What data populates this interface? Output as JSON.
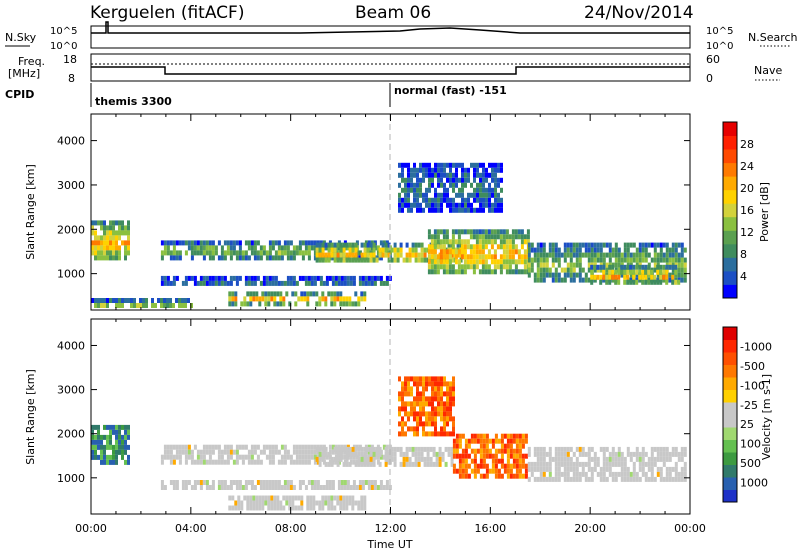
{
  "header": {
    "radar": "Kerguelen (fitACF)",
    "beam": "Beam 06",
    "date": "24/Nov/2014"
  },
  "top_panels": {
    "nsky_label": "N.Sky",
    "nsearch_label": "N.Search",
    "nsky_ticks": [
      "10^5",
      "10^0"
    ],
    "nsearch_ticks": [
      "10^5",
      "10^0"
    ],
    "freq_label_line1": "Freq.",
    "freq_label_line2": "[MHz]",
    "freq_ticks": [
      "18",
      "8"
    ],
    "nave_ticks": [
      "60",
      "0"
    ],
    "nave_label": "Nave",
    "cpid_label": "CPID",
    "cpid_mode_1": "themis 3300",
    "cpid_mode_2": "normal (fast) -151"
  },
  "chart_data": [
    {
      "type": "heatmap",
      "title": "",
      "ylabel": "Slant Range [km]",
      "xlabel": "Time UT",
      "ylim": [
        180,
        4600
      ],
      "yticks": [
        1000,
        2000,
        3000,
        4000
      ],
      "xticks": [
        "00:00",
        "04:00",
        "08:00",
        "12:00",
        "16:00",
        "20:00",
        "00:00"
      ],
      "xlim_hours": [
        0,
        24
      ],
      "colorbar": {
        "label": "Power [dB]",
        "ticks": [
          "4",
          "8",
          "12",
          "16",
          "20",
          "24",
          "28"
        ],
        "range": [
          0,
          30
        ],
        "colors": [
          "#0000ff",
          "#1c4fc4",
          "#2b6e9e",
          "#3f8c5e",
          "#5aa050",
          "#8ac040",
          "#d2d23c",
          "#ffd200",
          "#ffaa00",
          "#ff7a00",
          "#ff4a00",
          "#ff2000",
          "#e60000"
        ]
      },
      "echo_regions": [
        {
          "t0": 0.0,
          "t1": 1.5,
          "r0": 1300,
          "r1": 2200,
          "level": "high"
        },
        {
          "t0": 0.0,
          "t1": 4.0,
          "r0": 250,
          "r1": 450,
          "level": "med"
        },
        {
          "t0": 2.8,
          "t1": 12.0,
          "r0": 1400,
          "r1": 1750,
          "level": "med"
        },
        {
          "t0": 2.8,
          "t1": 12.0,
          "r0": 750,
          "r1": 950,
          "level": "low"
        },
        {
          "t0": 5.5,
          "t1": 11.0,
          "r0": 350,
          "r1": 600,
          "level": "high"
        },
        {
          "t0": 9.0,
          "t1": 15.0,
          "r0": 1300,
          "r1": 1700,
          "level": "high"
        },
        {
          "t0": 12.3,
          "t1": 16.5,
          "r0": 2400,
          "r1": 3500,
          "level": "low"
        },
        {
          "t0": 13.5,
          "t1": 17.5,
          "r0": 1000,
          "r1": 2000,
          "level": "high"
        },
        {
          "t0": 17.5,
          "t1": 23.8,
          "r0": 800,
          "r1": 1700,
          "level": "med"
        },
        {
          "t0": 20.0,
          "t1": 23.5,
          "r0": 800,
          "r1": 1200,
          "level": "high"
        }
      ]
    },
    {
      "type": "heatmap",
      "title": "",
      "ylabel": "Slant Range [km]",
      "xlabel": "Time UT",
      "ylim": [
        180,
        4600
      ],
      "yticks": [
        1000,
        2000,
        3000,
        4000
      ],
      "xticks": [
        "00:00",
        "04:00",
        "08:00",
        "12:00",
        "16:00",
        "20:00",
        "00:00"
      ],
      "xlim_hours": [
        0,
        24
      ],
      "colorbar": {
        "label": "Velocity [m s-1]",
        "ticks": [
          "1000",
          "500",
          "100",
          "25",
          "-25",
          "-100",
          "-500",
          "-1000"
        ],
        "range": [
          -1000,
          1000
        ],
        "colors": [
          "#1e32c8",
          "#2860b0",
          "#307a6a",
          "#3c9a40",
          "#64c050",
          "#a0d870",
          "#c8c8c8",
          "#c8c8c8",
          "#ffd000",
          "#ffaa00",
          "#ff7800",
          "#ff5000",
          "#ff2800",
          "#e00000"
        ]
      },
      "echo_regions": [
        {
          "t0": 0.0,
          "t1": 1.5,
          "r0": 1300,
          "r1": 2200,
          "level": "pos"
        },
        {
          "t0": 2.8,
          "t1": 12.0,
          "r0": 1400,
          "r1": 1750,
          "level": "zero"
        },
        {
          "t0": 2.8,
          "t1": 12.0,
          "r0": 750,
          "r1": 950,
          "level": "zero"
        },
        {
          "t0": 5.5,
          "t1": 11.0,
          "r0": 350,
          "r1": 600,
          "level": "zero"
        },
        {
          "t0": 9.0,
          "t1": 14.5,
          "r0": 1300,
          "r1": 1700,
          "level": "zero"
        },
        {
          "t0": 12.3,
          "t1": 14.5,
          "r0": 2000,
          "r1": 3300,
          "level": "neg"
        },
        {
          "t0": 14.5,
          "t1": 17.5,
          "r0": 1000,
          "r1": 2000,
          "level": "neg"
        },
        {
          "t0": 17.5,
          "t1": 23.8,
          "r0": 1000,
          "r1": 1700,
          "level": "zero"
        }
      ]
    }
  ]
}
